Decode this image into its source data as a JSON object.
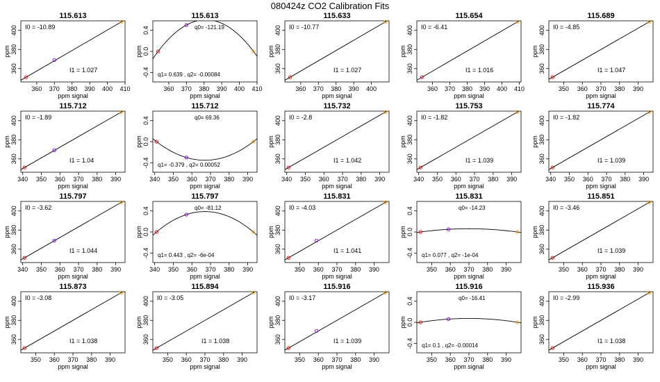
{
  "figure": {
    "title": "080424z   CO2 Calibration Fits",
    "xlabel": "ppm signal",
    "ylabel": "ppm"
  },
  "colors": {
    "line": "#000000",
    "low_point": "#ff0000",
    "mid_point": "#8800ff",
    "high_point": "#ffa500",
    "background": "#ffffff"
  },
  "chart_data": [
    {
      "type": "line",
      "title": "115.613",
      "fit": "linear",
      "xticks": [
        360,
        370,
        380,
        390,
        400,
        410
      ],
      "yticks": [
        360,
        380,
        400
      ],
      "xlim": [
        351,
        410
      ],
      "ylim": [
        346,
        410
      ],
      "points": [
        [
          354,
          351
        ],
        [
          370,
          369
        ],
        [
          408,
          409
        ]
      ],
      "annotations": [
        {
          "text": "I0 =  -10.89",
          "pos": "top-left"
        },
        {
          "text": "I1 =  1.027",
          "pos": "bottom-mid"
        }
      ]
    },
    {
      "type": "line",
      "title": "115.613",
      "fit": "quadratic",
      "xticks": [
        360,
        370,
        380,
        390,
        400,
        410
      ],
      "yticks": [
        -0.4,
        0.0,
        0.4
      ],
      "xlim": [
        351,
        410
      ],
      "ylim": [
        -0.58,
        0.58
      ],
      "points": [
        [
          354,
          0.0
        ],
        [
          370,
          0.5
        ],
        [
          408,
          0.0
        ]
      ],
      "annotations": [
        {
          "text": "q0= -121.19",
          "pos": "top-mid"
        },
        {
          "text": "q1= 0.639 , q2= -0.00084",
          "pos": "bottom-left"
        }
      ]
    },
    {
      "type": "line",
      "title": "115.633",
      "fit": "linear",
      "xticks": [
        360,
        370,
        380,
        390,
        400
      ],
      "yticks": [
        360,
        380,
        400
      ],
      "xlim": [
        351,
        410
      ],
      "ylim": [
        346,
        410
      ],
      "points": [
        [
          354,
          351
        ],
        [
          408,
          409
        ]
      ],
      "annotations": [
        {
          "text": "I0 =  -10.77",
          "pos": "top-left"
        },
        {
          "text": "I1 =  1.027",
          "pos": "bottom-mid"
        }
      ]
    },
    {
      "type": "line",
      "title": "115.654",
      "fit": "linear",
      "xticks": [
        360,
        370,
        380,
        390,
        400,
        410
      ],
      "yticks": [
        360,
        380,
        400
      ],
      "xlim": [
        351,
        411
      ],
      "ylim": [
        346,
        410
      ],
      "points": [
        [
          354,
          351
        ],
        [
          409,
          409
        ]
      ],
      "annotations": [
        {
          "text": "I0 =  -6.41",
          "pos": "top-left"
        },
        {
          "text": "I1 =  1.016",
          "pos": "bottom-mid"
        }
      ]
    },
    {
      "type": "line",
      "title": "115.689",
      "fit": "linear",
      "xticks": [
        350,
        360,
        370,
        380,
        390
      ],
      "yticks": [
        360,
        380,
        400
      ],
      "xlim": [
        342,
        398
      ],
      "ylim": [
        346,
        410
      ],
      "points": [
        [
          344,
          351
        ],
        [
          396,
          409
        ]
      ],
      "annotations": [
        {
          "text": "I0 =  -4.85",
          "pos": "top-left"
        },
        {
          "text": "I1 =  1.047",
          "pos": "bottom-mid"
        }
      ]
    },
    {
      "type": "line",
      "title": "115.712",
      "fit": "linear",
      "xticks": [
        340,
        350,
        360,
        370,
        380,
        390
      ],
      "yticks": [
        360,
        380,
        400
      ],
      "xlim": [
        339,
        395
      ],
      "ylim": [
        346,
        410
      ],
      "points": [
        [
          341,
          351
        ],
        [
          357,
          369
        ],
        [
          393,
          409
        ]
      ],
      "annotations": [
        {
          "text": "I0 =  -1.89",
          "pos": "top-left"
        },
        {
          "text": "I1 =  1.04",
          "pos": "bottom-mid"
        }
      ]
    },
    {
      "type": "line",
      "title": "115.712",
      "fit": "quadratic",
      "xticks": [
        340,
        350,
        360,
        370,
        380,
        390
      ],
      "yticks": [
        -0.4,
        0.0,
        0.4
      ],
      "xlim": [
        339,
        395
      ],
      "ylim": [
        -0.58,
        0.58
      ],
      "points": [
        [
          341,
          0.0
        ],
        [
          357,
          -0.3
        ],
        [
          393,
          0.0
        ]
      ],
      "annotations": [
        {
          "text": "q0= 69.36",
          "pos": "top-mid"
        },
        {
          "text": "q1= -0.379 , q2= 0.00052",
          "pos": "bottom-left"
        }
      ]
    },
    {
      "type": "line",
      "title": "115.732",
      "fit": "linear",
      "xticks": [
        340,
        350,
        360,
        370,
        380,
        390
      ],
      "yticks": [
        360,
        380,
        400
      ],
      "xlim": [
        339,
        395
      ],
      "ylim": [
        346,
        410
      ],
      "points": [
        [
          341,
          351
        ],
        [
          393,
          409
        ]
      ],
      "annotations": [
        {
          "text": "I0 =  -2.8",
          "pos": "top-left"
        },
        {
          "text": "I1 =  1.042",
          "pos": "bottom-mid"
        }
      ]
    },
    {
      "type": "line",
      "title": "115.753",
      "fit": "linear",
      "xticks": [
        340,
        350,
        360,
        370,
        380,
        390
      ],
      "yticks": [
        360,
        380,
        400
      ],
      "xlim": [
        339,
        395
      ],
      "ylim": [
        346,
        410
      ],
      "points": [
        [
          341,
          351
        ],
        [
          393,
          409
        ]
      ],
      "annotations": [
        {
          "text": "I0 =  -1.82",
          "pos": "top-left"
        },
        {
          "text": "I1 =  1.039",
          "pos": "bottom-mid"
        }
      ]
    },
    {
      "type": "line",
      "title": "115.774",
      "fit": "linear",
      "xticks": [
        340,
        350,
        360,
        370,
        380,
        390
      ],
      "yticks": [
        360,
        380,
        400
      ],
      "xlim": [
        339,
        395
      ],
      "ylim": [
        346,
        410
      ],
      "points": [
        [
          341,
          351
        ],
        [
          393,
          409
        ]
      ],
      "annotations": [
        {
          "text": "I0 =  -1.82",
          "pos": "top-left"
        },
        {
          "text": "I1 =  1.039",
          "pos": "bottom-mid"
        }
      ]
    },
    {
      "type": "line",
      "title": "115.797",
      "fit": "linear",
      "xticks": [
        340,
        350,
        360,
        370,
        380,
        390
      ],
      "yticks": [
        360,
        380,
        400
      ],
      "xlim": [
        339,
        395
      ],
      "ylim": [
        346,
        410
      ],
      "points": [
        [
          341,
          351
        ],
        [
          357,
          369
        ],
        [
          393,
          409
        ]
      ],
      "annotations": [
        {
          "text": "I0 =  -3.62",
          "pos": "top-left"
        },
        {
          "text": "I1 =  1.044",
          "pos": "bottom-mid"
        }
      ]
    },
    {
      "type": "line",
      "title": "115.797",
      "fit": "quadratic",
      "xticks": [
        340,
        350,
        360,
        370,
        380,
        390
      ],
      "yticks": [
        -0.4,
        0.0,
        0.4
      ],
      "xlim": [
        339,
        395
      ],
      "ylim": [
        -0.58,
        0.58
      ],
      "points": [
        [
          341,
          0.0
        ],
        [
          357,
          0.33
        ],
        [
          393,
          0.0
        ]
      ],
      "annotations": [
        {
          "text": "q0= -81.12",
          "pos": "top-mid"
        },
        {
          "text": "q1= 0.443 , q2= -6e-04",
          "pos": "bottom-left"
        }
      ]
    },
    {
      "type": "line",
      "title": "115.831",
      "fit": "linear",
      "xticks": [
        350,
        360,
        370,
        380,
        390
      ],
      "yticks": [
        360,
        380,
        400
      ],
      "xlim": [
        342,
        398
      ],
      "ylim": [
        346,
        410
      ],
      "points": [
        [
          344,
          351
        ],
        [
          359,
          369
        ],
        [
          396,
          409
        ]
      ],
      "annotations": [
        {
          "text": "I0 =  -4.03",
          "pos": "top-left"
        },
        {
          "text": "I1 =  1.041",
          "pos": "bottom-mid"
        }
      ]
    },
    {
      "type": "line",
      "title": "115.831",
      "fit": "quadratic",
      "xticks": [
        350,
        360,
        370,
        380,
        390
      ],
      "yticks": [
        -0.4,
        0.0,
        0.4
      ],
      "xlim": [
        342,
        398
      ],
      "ylim": [
        -0.58,
        0.58
      ],
      "points": [
        [
          344,
          0.0
        ],
        [
          359,
          0.05
        ],
        [
          396,
          0.0
        ]
      ],
      "annotations": [
        {
          "text": "q0= -14.23",
          "pos": "top-mid"
        },
        {
          "text": "q1= 0.077 , q2= -1e-04",
          "pos": "bottom-left"
        }
      ]
    },
    {
      "type": "line",
      "title": "115.851",
      "fit": "linear",
      "xticks": [
        350,
        360,
        370,
        380,
        390
      ],
      "yticks": [
        360,
        380,
        400
      ],
      "xlim": [
        342,
        398
      ],
      "ylim": [
        346,
        410
      ],
      "points": [
        [
          344,
          351
        ],
        [
          396,
          409
        ]
      ],
      "annotations": [
        {
          "text": "I0 =  -3.46",
          "pos": "top-left"
        },
        {
          "text": "I1 =  1.039",
          "pos": "bottom-mid"
        }
      ]
    },
    {
      "type": "line",
      "title": "115.873",
      "fit": "linear",
      "xticks": [
        350,
        360,
        370,
        380,
        390
      ],
      "yticks": [
        360,
        380,
        400
      ],
      "xlim": [
        342,
        398
      ],
      "ylim": [
        346,
        410
      ],
      "points": [
        [
          344,
          351
        ],
        [
          396,
          409
        ]
      ],
      "annotations": [
        {
          "text": "I0 =  -3.08",
          "pos": "top-left"
        },
        {
          "text": "I1 =  1.038",
          "pos": "bottom-mid"
        }
      ]
    },
    {
      "type": "line",
      "title": "115.894",
      "fit": "linear",
      "xticks": [
        350,
        360,
        370,
        380,
        390
      ],
      "yticks": [
        360,
        380,
        400
      ],
      "xlim": [
        342,
        398
      ],
      "ylim": [
        346,
        410
      ],
      "points": [
        [
          344,
          351
        ],
        [
          396,
          409
        ]
      ],
      "annotations": [
        {
          "text": "I0 =  -3.05",
          "pos": "top-left"
        },
        {
          "text": "I1 =  1.038",
          "pos": "bottom-mid"
        }
      ]
    },
    {
      "type": "line",
      "title": "115.916",
      "fit": "linear",
      "xticks": [
        350,
        360,
        370,
        380,
        390
      ],
      "yticks": [
        360,
        380,
        400
      ],
      "xlim": [
        342,
        398
      ],
      "ylim": [
        346,
        410
      ],
      "points": [
        [
          344,
          351
        ],
        [
          359,
          369
        ],
        [
          396,
          409
        ]
      ],
      "annotations": [
        {
          "text": "I0 =  -3.17",
          "pos": "top-left"
        },
        {
          "text": "I1 =  1.039",
          "pos": "bottom-mid"
        }
      ]
    },
    {
      "type": "line",
      "title": "115.916",
      "fit": "quadratic",
      "xticks": [
        350,
        360,
        370,
        380,
        390
      ],
      "yticks": [
        -0.4,
        0.0,
        0.4
      ],
      "xlim": [
        342,
        398
      ],
      "ylim": [
        -0.58,
        0.58
      ],
      "points": [
        [
          344,
          0.0
        ],
        [
          359,
          0.06
        ],
        [
          396,
          0.0
        ]
      ],
      "annotations": [
        {
          "text": "q0= -16.41",
          "pos": "top-mid"
        },
        {
          "text": "q1= 0.1 , q2= -0.00014",
          "pos": "bottom-left"
        }
      ]
    },
    {
      "type": "line",
      "title": "115.936",
      "fit": "linear",
      "xticks": [
        350,
        360,
        370,
        380,
        390
      ],
      "yticks": [
        360,
        380,
        400
      ],
      "xlim": [
        342,
        398
      ],
      "ylim": [
        346,
        410
      ],
      "points": [
        [
          344,
          351
        ],
        [
          396,
          409
        ]
      ],
      "annotations": [
        {
          "text": "I0 =  -2.99",
          "pos": "top-left"
        },
        {
          "text": "I1 =  1.038",
          "pos": "bottom-mid"
        }
      ]
    }
  ]
}
